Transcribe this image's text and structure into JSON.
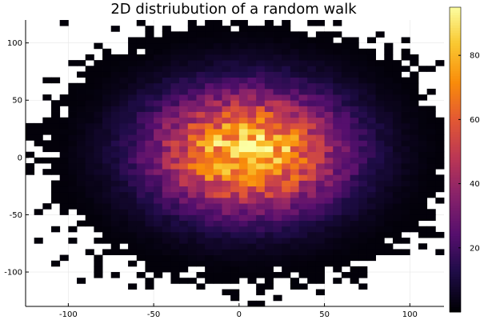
{
  "chart_data": {
    "type": "heatmap",
    "title": "2D distriubution of a random walk",
    "xlabel": "",
    "ylabel": "",
    "xlim": [
      -125,
      120
    ],
    "ylim": [
      -130,
      120
    ],
    "x_ticks": [
      -100,
      -50,
      0,
      50,
      100
    ],
    "y_ticks": [
      -100,
      -50,
      0,
      50,
      100
    ],
    "bin_size": 5,
    "grid": true,
    "colorbar": {
      "min": 0,
      "max": 95,
      "ticks": [
        20,
        40,
        60,
        80
      ],
      "colormap": "inferno"
    },
    "distribution": {
      "shape": "approximately 2D Gaussian",
      "peak_x": 5,
      "peak_y": 5,
      "peak_count": 88,
      "spread_sd_x": 38,
      "spread_sd_y": 36,
      "x_extent": [
        -125,
        120
      ],
      "y_extent": [
        -130,
        120
      ]
    }
  }
}
